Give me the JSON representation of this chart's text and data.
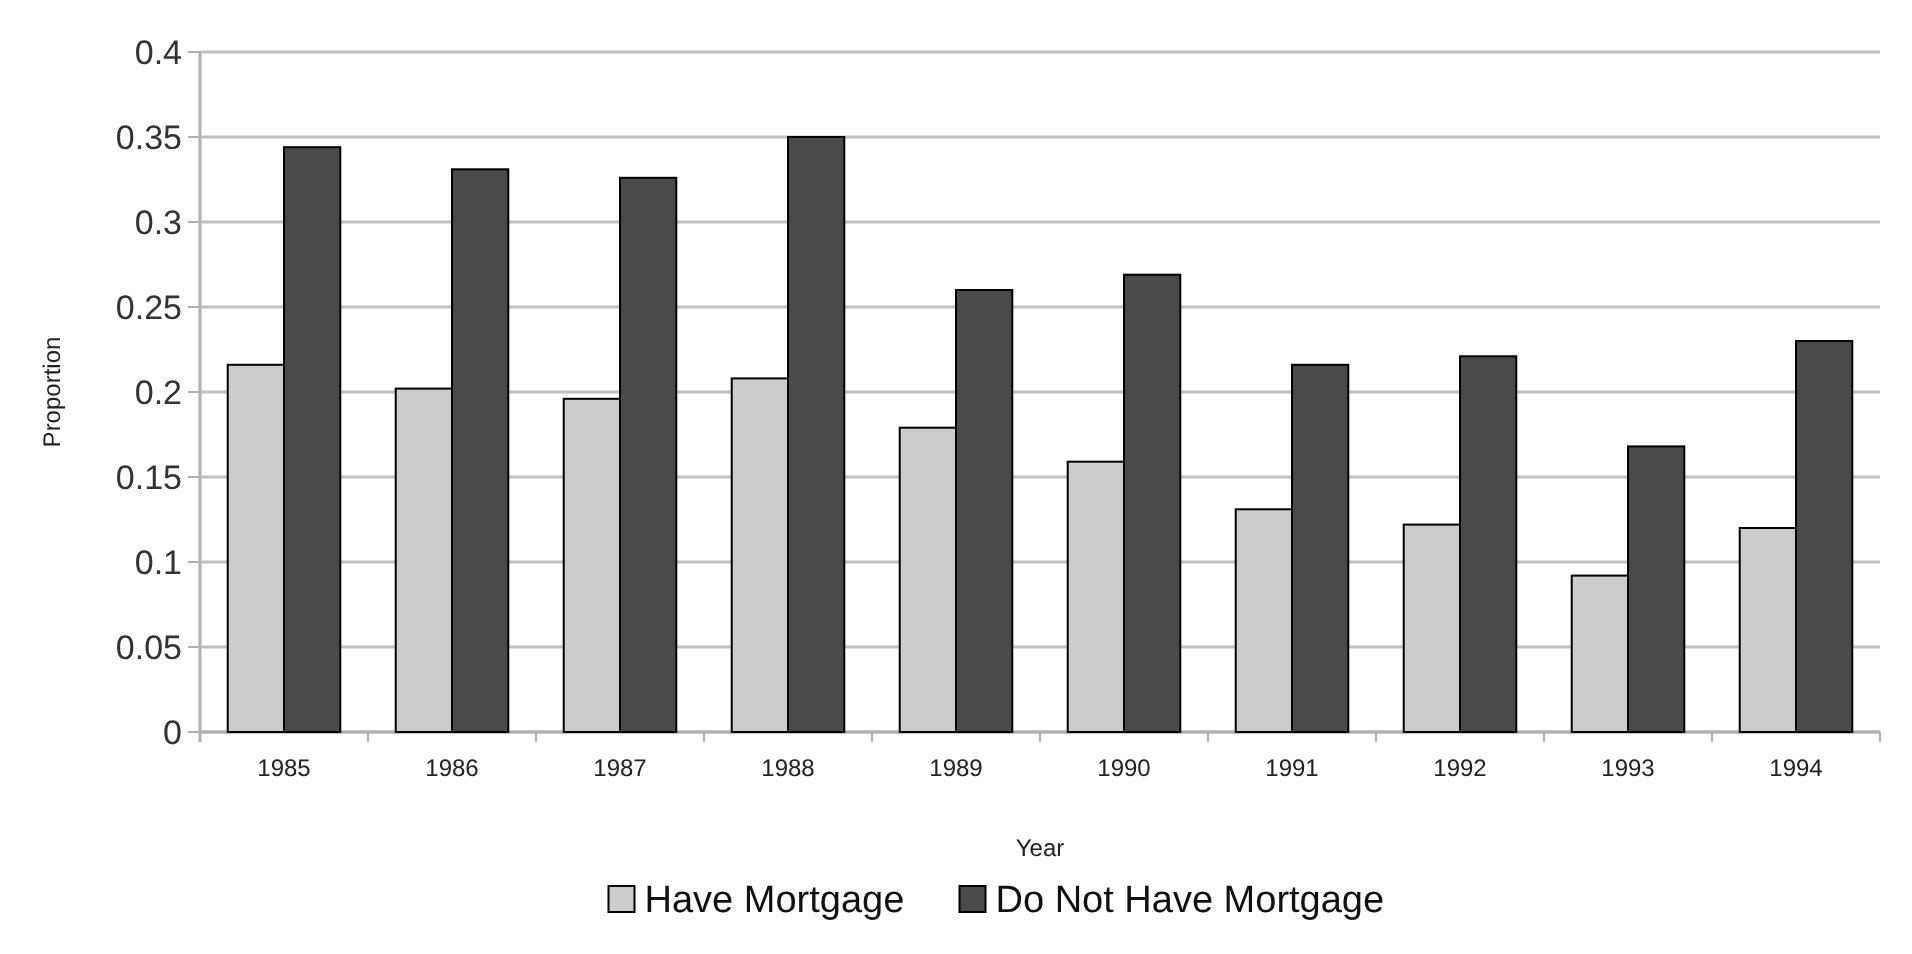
{
  "chart_data": {
    "type": "bar",
    "xlabel": "Year",
    "ylabel": "Proportion",
    "categories": [
      "1985",
      "1986",
      "1987",
      "1988",
      "1989",
      "1990",
      "1991",
      "1992",
      "1993",
      "1994"
    ],
    "series": [
      {
        "name": "Have Mortgage",
        "color": "#cccccc",
        "values": [
          0.216,
          0.202,
          0.196,
          0.208,
          0.179,
          0.159,
          0.131,
          0.122,
          0.092,
          0.12
        ]
      },
      {
        "name": "Do Not Have Mortgage",
        "color": "#4a4a4a",
        "values": [
          0.344,
          0.331,
          0.326,
          0.35,
          0.26,
          0.269,
          0.216,
          0.221,
          0.168,
          0.23
        ]
      }
    ],
    "ylim": [
      0,
      0.4
    ],
    "yticks": [
      0,
      0.05,
      0.1,
      0.15,
      0.2,
      0.25,
      0.3,
      0.35,
      0.4
    ],
    "grid": "y",
    "legend": "bottom"
  }
}
